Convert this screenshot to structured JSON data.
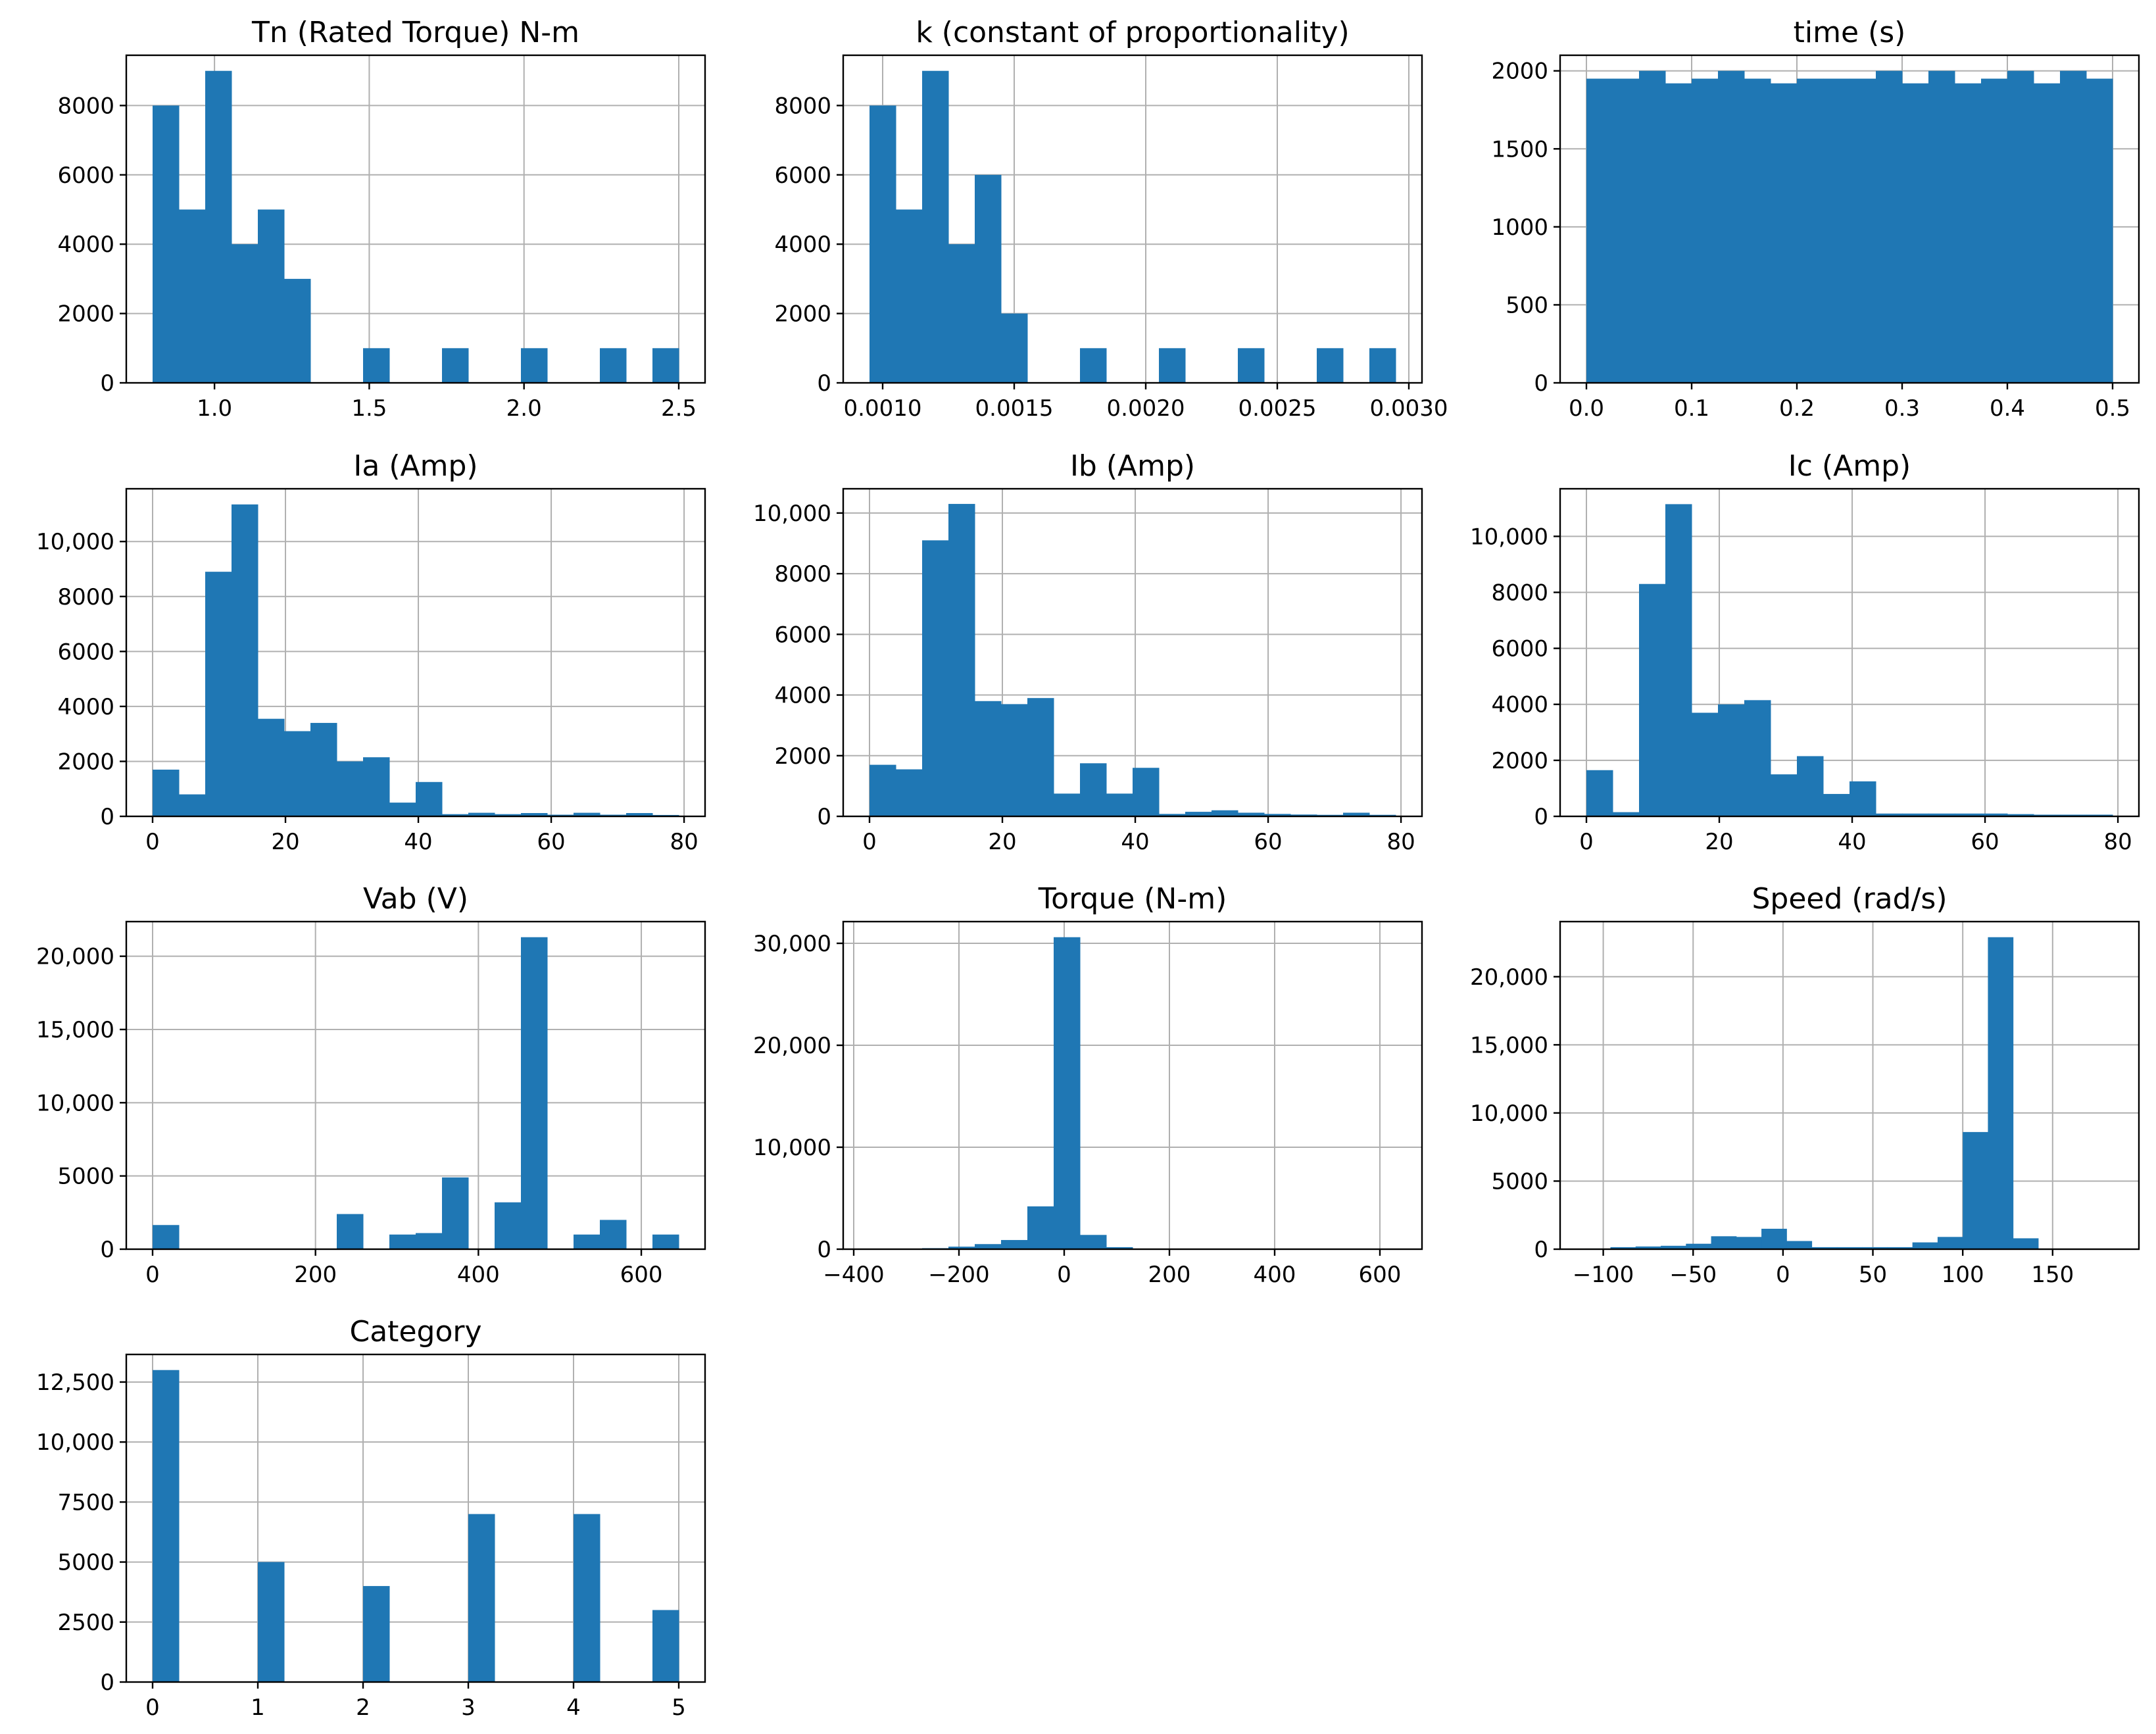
{
  "colors": {
    "bar": "#1f77b4",
    "grid": "#b0b0b0",
    "axis": "#000000",
    "background": "#ffffff"
  },
  "chart_data": [
    {
      "type": "histogram",
      "title": "Tn (Rated Torque) N-m",
      "bin_start": 0.8,
      "bin_width": 0.085,
      "counts": [
        8000,
        5000,
        9000,
        4000,
        5000,
        3000,
        0,
        0,
        1000,
        0,
        0,
        1000,
        0,
        0,
        1000,
        0,
        0,
        1000,
        0,
        1000
      ],
      "xlim": [
        0.715,
        2.585
      ],
      "ylim": [
        0,
        9450
      ],
      "xticks": [
        1.0,
        1.5,
        2.0,
        2.5
      ],
      "xtick_labels": [
        "1.0",
        "1.5",
        "2.0",
        "2.5"
      ],
      "yticks": [
        0,
        2000,
        4000,
        6000,
        8000
      ],
      "ytick_labels": [
        "0",
        "2000",
        "4000",
        "6000",
        "8000"
      ]
    },
    {
      "type": "histogram",
      "title": "k (constant of proportionality)",
      "bin_start": 0.00095,
      "bin_width": 0.0001,
      "counts": [
        8000,
        5000,
        9000,
        4000,
        6000,
        2000,
        0,
        0,
        1000,
        0,
        0,
        1000,
        0,
        0,
        1000,
        0,
        0,
        1000,
        0,
        1000
      ],
      "xlim": [
        0.00085,
        0.00305
      ],
      "ylim": [
        0,
        9450
      ],
      "xticks": [
        0.001,
        0.0015,
        0.002,
        0.0025,
        0.003
      ],
      "xtick_labels": [
        "0.0010",
        "0.0015",
        "0.0020",
        "0.0025",
        "0.0030"
      ],
      "yticks": [
        0,
        2000,
        4000,
        6000,
        8000
      ],
      "ytick_labels": [
        "0",
        "2000",
        "4000",
        "6000",
        "8000"
      ]
    },
    {
      "type": "histogram",
      "title": "time (s)",
      "bin_start": 0.0,
      "bin_width": 0.025,
      "counts": [
        1950,
        1950,
        2000,
        1920,
        1950,
        2000,
        1950,
        1920,
        1950,
        1950,
        1950,
        2000,
        1920,
        2000,
        1920,
        1950,
        2000,
        1920,
        2000,
        1950
      ],
      "xlim": [
        -0.025,
        0.525
      ],
      "ylim": [
        0,
        2100
      ],
      "xticks": [
        0.0,
        0.1,
        0.2,
        0.3,
        0.4,
        0.5
      ],
      "xtick_labels": [
        "0.0",
        "0.1",
        "0.2",
        "0.3",
        "0.4",
        "0.5"
      ],
      "yticks": [
        0,
        500,
        1000,
        1500,
        2000
      ],
      "ytick_labels": [
        "0",
        "500",
        "1000",
        "1500",
        "2000"
      ]
    },
    {
      "type": "histogram",
      "title": "Ia (Amp)",
      "bin_start": 0.0,
      "bin_width": 3.96,
      "counts": [
        1700,
        800,
        8900,
        11350,
        3550,
        3100,
        3400,
        2000,
        2150,
        500,
        1250,
        80,
        130,
        80,
        120,
        60,
        130,
        60,
        120,
        50
      ],
      "xlim": [
        -3.96,
        83.16
      ],
      "ylim": [
        0,
        11920
      ],
      "xticks": [
        0,
        20,
        40,
        60,
        80
      ],
      "xtick_labels": [
        "0",
        "20",
        "40",
        "60",
        "80"
      ],
      "yticks": [
        0,
        2000,
        4000,
        6000,
        8000,
        10000
      ],
      "ytick_labels": [
        "0",
        "2000",
        "4000",
        "6000",
        "8000",
        "10,000"
      ]
    },
    {
      "type": "histogram",
      "title": "Ib (Amp)",
      "bin_start": 0.0,
      "bin_width": 3.96,
      "counts": [
        1700,
        1550,
        9100,
        10300,
        3800,
        3700,
        3900,
        750,
        1750,
        750,
        1600,
        80,
        150,
        200,
        120,
        80,
        60,
        50,
        120,
        50
      ],
      "xlim": [
        -3.96,
        83.16
      ],
      "ylim": [
        0,
        10800
      ],
      "xticks": [
        0,
        20,
        40,
        60,
        80
      ],
      "xtick_labels": [
        "0",
        "20",
        "40",
        "60",
        "80"
      ],
      "yticks": [
        0,
        2000,
        4000,
        6000,
        8000,
        10000
      ],
      "ytick_labels": [
        "0",
        "2000",
        "4000",
        "6000",
        "8000",
        "10,000"
      ]
    },
    {
      "type": "histogram",
      "title": "Ic (Amp)",
      "bin_start": 0.0,
      "bin_width": 3.96,
      "counts": [
        1650,
        150,
        8300,
        11150,
        3700,
        4000,
        4150,
        1500,
        2150,
        800,
        1250,
        100,
        100,
        100,
        100,
        100,
        80,
        60,
        60,
        60
      ],
      "xlim": [
        -3.96,
        83.16
      ],
      "ylim": [
        0,
        11700
      ],
      "xticks": [
        0,
        20,
        40,
        60,
        80
      ],
      "xtick_labels": [
        "0",
        "20",
        "40",
        "60",
        "80"
      ],
      "yticks": [
        0,
        2000,
        4000,
        6000,
        8000,
        10000
      ],
      "ytick_labels": [
        "0",
        "2000",
        "4000",
        "6000",
        "8000",
        "10,000"
      ]
    },
    {
      "type": "histogram",
      "title": "Vab (V)",
      "bin_start": 0.0,
      "bin_width": 32.3,
      "counts": [
        1650,
        0,
        0,
        0,
        0,
        0,
        0,
        2400,
        0,
        1000,
        1100,
        4900,
        0,
        3200,
        21300,
        0,
        1000,
        2000,
        0,
        1000
      ],
      "xlim": [
        -32.3,
        678.3
      ],
      "ylim": [
        0,
        22365
      ],
      "xticks": [
        0,
        200,
        400,
        600
      ],
      "xtick_labels": [
        "0",
        "200",
        "400",
        "600"
      ],
      "yticks": [
        0,
        5000,
        10000,
        15000,
        20000
      ],
      "ytick_labels": [
        "0",
        "5000",
        "10,000",
        "15,000",
        "20,000"
      ]
    },
    {
      "type": "histogram",
      "title": "Torque (N-m)",
      "bin_start": -370.0,
      "bin_width": 50.0,
      "counts": [
        60,
        30,
        100,
        250,
        500,
        900,
        4200,
        30600,
        1400,
        200,
        60,
        30,
        20,
        20,
        10,
        10,
        10,
        10,
        10,
        10
      ],
      "xlim": [
        -420.0,
        680.0
      ],
      "ylim": [
        0,
        32130
      ],
      "xticks": [
        -400,
        -200,
        0,
        200,
        400,
        600
      ],
      "xtick_labels": [
        "−400",
        "−200",
        "0",
        "200",
        "400",
        "600"
      ],
      "yticks": [
        0,
        10000,
        20000,
        30000
      ],
      "ytick_labels": [
        "0",
        "10,000",
        "20,000",
        "30,000"
      ]
    },
    {
      "type": "histogram",
      "title": "Speed (rad/s)",
      "bin_start": -110.0,
      "bin_width": 14.0,
      "counts": [
        50,
        150,
        200,
        250,
        400,
        950,
        900,
        1500,
        600,
        150,
        150,
        150,
        150,
        500,
        900,
        8600,
        22900,
        800,
        0,
        0
      ],
      "xlim": [
        -124.0,
        198.0
      ],
      "ylim": [
        0,
        24045
      ],
      "xticks": [
        -100,
        -50,
        0,
        50,
        100,
        150
      ],
      "xtick_labels": [
        "−100",
        "−50",
        "0",
        "50",
        "100",
        "150"
      ],
      "yticks": [
        0,
        5000,
        10000,
        15000,
        20000
      ],
      "ytick_labels": [
        "0",
        "5000",
        "10,000",
        "15,000",
        "20,000"
      ]
    },
    {
      "type": "histogram",
      "title": "Category",
      "bin_start": 0.0,
      "bin_width": 0.25,
      "counts": [
        13000,
        0,
        0,
        0,
        5000,
        0,
        0,
        0,
        4000,
        0,
        0,
        0,
        7000,
        0,
        0,
        0,
        7000,
        0,
        0,
        3000
      ],
      "xlim": [
        -0.25,
        5.25
      ],
      "ylim": [
        0,
        13650
      ],
      "xticks": [
        0,
        1,
        2,
        3,
        4,
        5
      ],
      "xtick_labels": [
        "0",
        "1",
        "2",
        "3",
        "4",
        "5"
      ],
      "yticks": [
        0,
        2500,
        5000,
        7500,
        10000,
        12500
      ],
      "ytick_labels": [
        "0",
        "2500",
        "5000",
        "7500",
        "10,000",
        "12,500"
      ]
    }
  ]
}
